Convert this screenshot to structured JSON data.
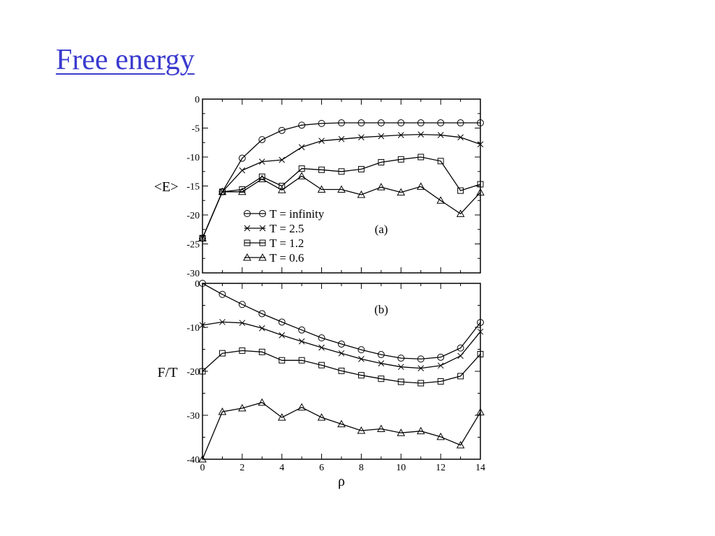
{
  "slide": {
    "title": "Free energy"
  },
  "chart_data": [
    {
      "type": "line",
      "panel_label": "(a)",
      "ylabel": "<E>",
      "xlabel": "",
      "xlim": [
        0,
        14
      ],
      "ylim": [
        -30,
        0
      ],
      "yticks": [
        0,
        -5,
        -10,
        -15,
        -20,
        -25,
        -30
      ],
      "xticks": [],
      "legend": {
        "position": "bottom-left",
        "entries": [
          "T = infinity",
          "T = 2.5",
          "T = 1.2",
          "T = 0.6"
        ]
      },
      "x": [
        0,
        1,
        2,
        3,
        4,
        5,
        6,
        7,
        8,
        9,
        10,
        11,
        12,
        13,
        14
      ],
      "series": [
        {
          "name": "T = infinity",
          "marker": "circle",
          "values": [
            -24,
            -16,
            -10.2,
            -7,
            -5.4,
            -4.5,
            -4.2,
            -4.1,
            -4.1,
            -4.1,
            -4.1,
            -4.1,
            -4.1,
            -4.1,
            -4.1
          ]
        },
        {
          "name": "T = 2.5",
          "marker": "x",
          "values": [
            -24,
            -16,
            -12.3,
            -10.8,
            -10.5,
            -8.3,
            -7.2,
            -6.9,
            -6.6,
            -6.4,
            -6.2,
            -6.1,
            -6.2,
            -6.6,
            -7.8
          ]
        },
        {
          "name": "T = 1.2",
          "marker": "square",
          "values": [
            -24,
            -16,
            -15.6,
            -13.4,
            -15,
            -12,
            -12.2,
            -12.5,
            -12.1,
            -10.9,
            -10.4,
            -10,
            -10.7,
            -15.8,
            -14.7
          ]
        },
        {
          "name": "T = 0.6",
          "marker": "triangle",
          "values": [
            -24,
            -16,
            -16,
            -13.8,
            -15.7,
            -13.3,
            -15.6,
            -15.6,
            -16.5,
            -15.2,
            -16.1,
            -15.1,
            -17.5,
            -19.8,
            -16.1
          ]
        }
      ]
    },
    {
      "type": "line",
      "panel_label": "(b)",
      "ylabel": "F/T",
      "xlabel": "ρ",
      "xlim": [
        0,
        14
      ],
      "ylim": [
        -40,
        0
      ],
      "yticks": [
        0,
        -10,
        -20,
        -30,
        -40
      ],
      "xticks": [
        0,
        2,
        4,
        6,
        8,
        10,
        12,
        14
      ],
      "x": [
        0,
        1,
        2,
        3,
        4,
        5,
        6,
        7,
        8,
        9,
        10,
        11,
        12,
        13,
        14
      ],
      "series": [
        {
          "name": "T = infinity",
          "marker": "circle",
          "values": [
            0,
            -2.5,
            -4.8,
            -6.9,
            -8.8,
            -10.6,
            -12.4,
            -13.8,
            -15.1,
            -16.2,
            -17,
            -17.2,
            -16.8,
            -14.7,
            -8.9
          ]
        },
        {
          "name": "T = 2.5",
          "marker": "x",
          "values": [
            -9.5,
            -8.8,
            -9,
            -10.2,
            -11.8,
            -13.2,
            -14.6,
            -15.9,
            -17.2,
            -18.2,
            -19,
            -19.3,
            -18.7,
            -16.5,
            -11
          ]
        },
        {
          "name": "T = 1.2",
          "marker": "square",
          "values": [
            -20,
            -15.9,
            -15.3,
            -15.6,
            -17.5,
            -17.5,
            -18.6,
            -19.9,
            -20.9,
            -21.7,
            -22.4,
            -22.7,
            -22.3,
            -21.1,
            -16.1
          ]
        },
        {
          "name": "T = 0.6",
          "marker": "triangle",
          "values": [
            -40,
            -29.2,
            -28.4,
            -27.1,
            -30.5,
            -28.2,
            -30.5,
            -32,
            -33.5,
            -33.1,
            -34,
            -33.6,
            -34.9,
            -36.8,
            -29.3
          ]
        }
      ]
    }
  ]
}
